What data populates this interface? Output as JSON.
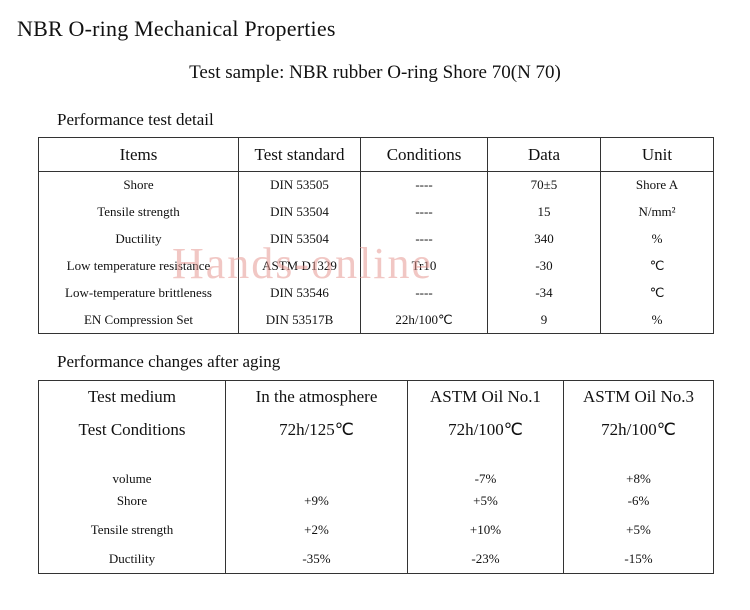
{
  "page": {
    "title": "NBR O-ring Mechanical Properties",
    "subtitle": "Test sample: NBR rubber O-ring Shore 70(N 70)",
    "watermark": {
      "text": "Hands-online",
      "color": "#e79b95"
    }
  },
  "section1": {
    "heading": "Performance test detail",
    "table": {
      "headers": [
        "Items",
        "Test standard",
        "Conditions",
        "Data",
        "Unit"
      ],
      "rows": [
        [
          "Shore",
          "DIN 53505",
          "----",
          "70±5",
          "Shore A"
        ],
        [
          "Tensile strength",
          "DIN 53504",
          "----",
          "15",
          "N/mm²"
        ],
        [
          "Ductility",
          "DIN 53504",
          "----",
          "340",
          "%"
        ],
        [
          "Low temperature resistance",
          "ASTM D1329",
          "Tr10",
          "-30",
          "℃"
        ],
        [
          "Low-temperature brittleness",
          "DIN 53546",
          "----",
          "-34",
          "℃"
        ],
        [
          "EN Compression Set",
          "DIN 53517B",
          "22h/100℃",
          "9",
          "%"
        ]
      ]
    }
  },
  "section2": {
    "heading": "Performance changes after aging",
    "table": {
      "header_rows": [
        [
          "Test medium",
          "In the atmosphere",
          "ASTM Oil No.1",
          "ASTM Oil No.3"
        ],
        [
          "Test Conditions",
          "72h/125℃",
          "72h/100℃",
          "72h/100℃"
        ]
      ],
      "rows": [
        [
          "volume",
          "",
          "-7%",
          "+8%"
        ],
        [
          "Shore",
          "+9%",
          "+5%",
          "-6%"
        ],
        [
          "Tensile strength",
          "+2%",
          "+10%",
          "+5%"
        ],
        [
          "Ductility",
          "-35%",
          "-23%",
          "-15%"
        ]
      ]
    }
  }
}
